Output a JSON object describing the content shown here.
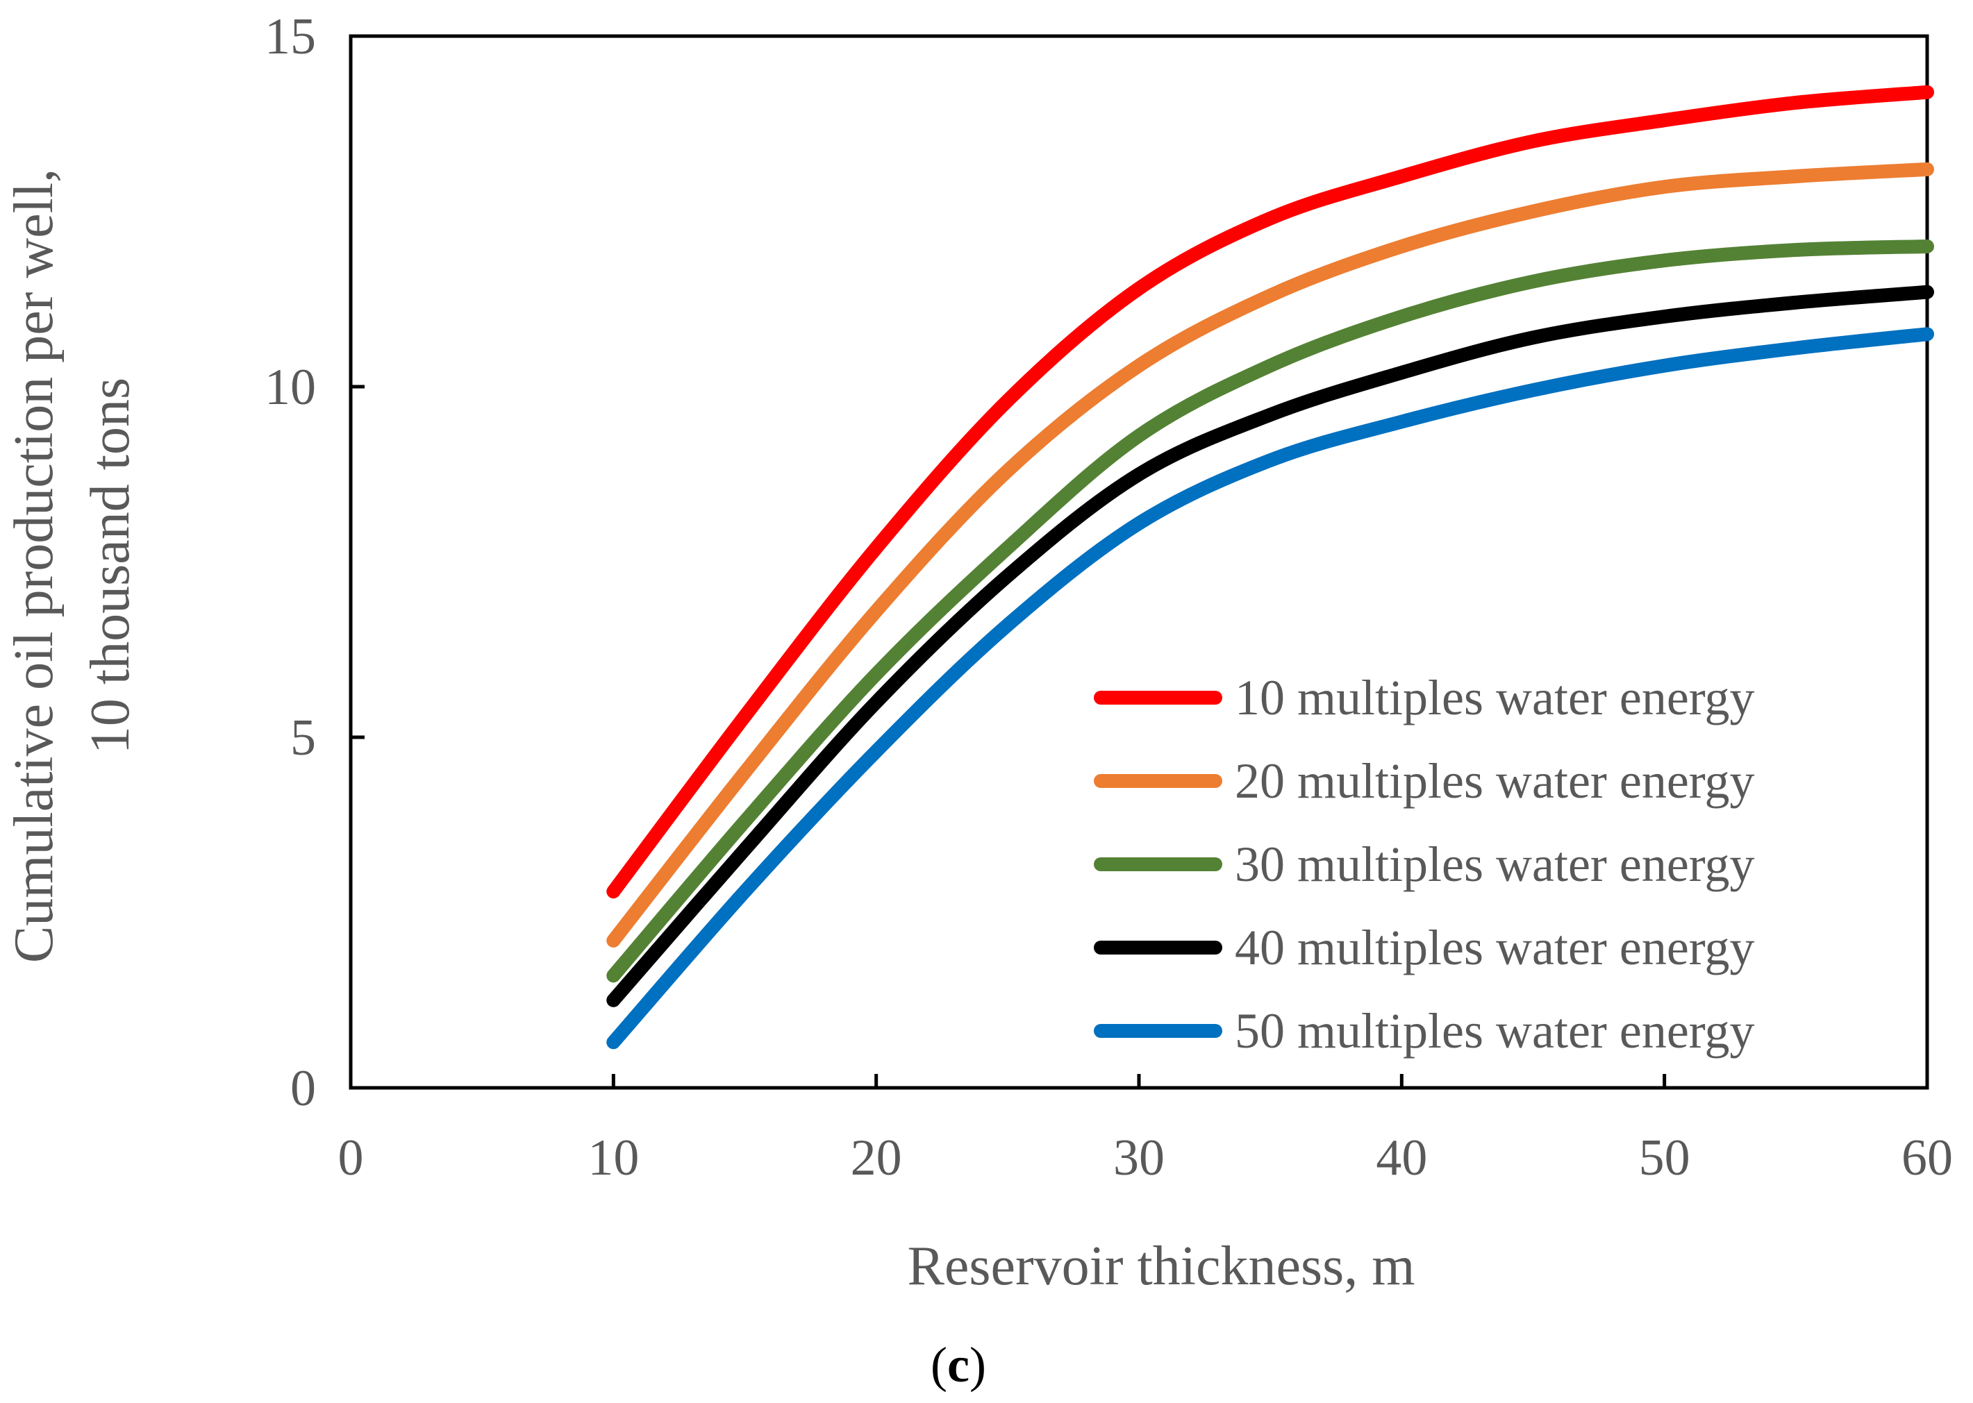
{
  "chart_data": {
    "type": "line",
    "title": "",
    "xlabel": "Reservoir thickness, m",
    "ylabel_lines": [
      "Cumulative oil production per well,",
      "10 thousand  tons"
    ],
    "xlim": [
      0,
      60
    ],
    "ylim": [
      0,
      15
    ],
    "xticks": [
      0,
      10,
      20,
      30,
      40,
      50,
      60
    ],
    "yticks": [
      0,
      5,
      10,
      15
    ],
    "grid": false,
    "legend_position": "bottom-right",
    "x": [
      10,
      15,
      20,
      25,
      30,
      35,
      40,
      45,
      50,
      55,
      60
    ],
    "series": [
      {
        "name": "10 multiples water energy",
        "color": "#ff0000",
        "values": [
          2.8,
          5.3,
          7.7,
          9.8,
          11.4,
          12.4,
          13.0,
          13.5,
          13.8,
          14.05,
          14.2
        ]
      },
      {
        "name": "20 multiples water energy",
        "color": "#ed7d31",
        "values": [
          2.1,
          4.5,
          6.8,
          8.8,
          10.3,
          11.3,
          12.0,
          12.5,
          12.85,
          13.0,
          13.1
        ]
      },
      {
        "name": "30 multiples water energy",
        "color": "#548235",
        "values": [
          1.6,
          3.8,
          5.9,
          7.7,
          9.3,
          10.3,
          11.0,
          11.5,
          11.8,
          11.95,
          12.0
        ]
      },
      {
        "name": "40 multiples water energy",
        "color": "#000000",
        "values": [
          1.25,
          3.4,
          5.5,
          7.3,
          8.75,
          9.6,
          10.2,
          10.7,
          11.0,
          11.2,
          11.35
        ]
      },
      {
        "name": "50 multiples water energy",
        "color": "#0070c0",
        "values": [
          0.65,
          2.8,
          4.8,
          6.6,
          8.05,
          8.95,
          9.5,
          9.95,
          10.3,
          10.55,
          10.75
        ]
      }
    ]
  },
  "caption": {
    "open": "(",
    "letter": "c",
    "close": ")"
  }
}
